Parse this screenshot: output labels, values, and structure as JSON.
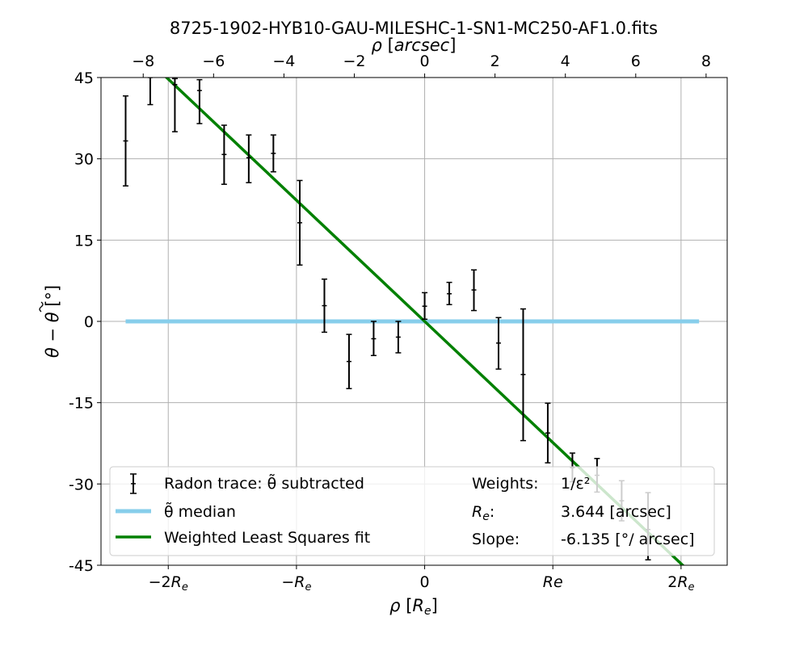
{
  "chart_data": {
    "type": "scatter",
    "title": "8725-1902-HYB10-GAU-MILESHC-1-SN1-MC250-AF1.0.fits",
    "xlabel": "ρ [R_e]",
    "xlabel_top": "ρ [arcsec]",
    "ylabel": "θ − θ̃ [°]",
    "re_arcsec": 3.644,
    "xlim_arcsec": [
      -9.2,
      8.6
    ],
    "ylim": [
      -45,
      45
    ],
    "grid": true,
    "yticks": [
      45,
      30,
      15,
      0,
      -15,
      -30,
      -45
    ],
    "ytick_labels": [
      "45",
      "30",
      "15",
      "0",
      "-15",
      "-30",
      "-45"
    ],
    "xticks_top": [
      -8,
      -6,
      -4,
      -2,
      0,
      2,
      4,
      6,
      8
    ],
    "xticks_top_labels": [
      "−8",
      "−6",
      "−4",
      "−2",
      "0",
      "2",
      "4",
      "6",
      "8"
    ],
    "xticks_bottom": [
      {
        "value_arcsec": -7.288,
        "label": "−2R",
        "sub": "e"
      },
      {
        "value_arcsec": -3.644,
        "label": "−R",
        "sub": "e"
      },
      {
        "value_arcsec": 0,
        "label": "0",
        "sub": ""
      },
      {
        "value_arcsec": 3.644,
        "label": "Re",
        "sub": ""
      },
      {
        "value_arcsec": 7.288,
        "label": "2R",
        "sub": "e"
      }
    ],
    "series": [
      {
        "name": "Radon trace: θ̃ subtracted",
        "kind": "errorbar",
        "color": "#000000",
        "points": [
          {
            "x": -8.5,
            "y": 33.3,
            "lo": 25.0,
            "hi": 41.6
          },
          {
            "x": -7.8,
            "y": 45.0,
            "lo": 40.0,
            "hi": 48.0
          },
          {
            "x": -7.1,
            "y": 43.7,
            "lo": 35.0,
            "hi": 44.8
          },
          {
            "x": -6.4,
            "y": 42.6,
            "lo": 36.5,
            "hi": 44.6
          },
          {
            "x": -5.7,
            "y": 30.8,
            "lo": 25.3,
            "hi": 36.2
          },
          {
            "x": -5.0,
            "y": 30.2,
            "lo": 25.6,
            "hi": 34.4
          },
          {
            "x": -4.3,
            "y": 31.0,
            "lo": 27.6,
            "hi": 34.4
          },
          {
            "x": -3.55,
            "y": 18.2,
            "lo": 10.4,
            "hi": 26.0
          },
          {
            "x": -2.85,
            "y": 2.9,
            "lo": -2.0,
            "hi": 7.8
          },
          {
            "x": -2.15,
            "y": -7.4,
            "lo": -12.4,
            "hi": -2.4
          },
          {
            "x": -1.45,
            "y": -3.2,
            "lo": -6.3,
            "hi": 0.0
          },
          {
            "x": -0.75,
            "y": -2.9,
            "lo": -5.8,
            "hi": 0.0
          },
          {
            "x": 0.0,
            "y": 2.8,
            "lo": 0.4,
            "hi": 5.3
          },
          {
            "x": 0.7,
            "y": 5.1,
            "lo": 3.1,
            "hi": 7.2
          },
          {
            "x": 1.4,
            "y": 5.8,
            "lo": 2.0,
            "hi": 9.5
          },
          {
            "x": 2.1,
            "y": -4.0,
            "lo": -8.8,
            "hi": 0.7
          },
          {
            "x": 2.8,
            "y": -9.8,
            "lo": -22.0,
            "hi": 2.3
          },
          {
            "x": 3.5,
            "y": -20.6,
            "lo": -26.1,
            "hi": -15.1
          },
          {
            "x": 4.2,
            "y": -27.0,
            "lo": -29.6,
            "hi": -24.3
          },
          {
            "x": 4.9,
            "y": -28.4,
            "lo": -31.5,
            "hi": -25.3
          },
          {
            "x": 5.6,
            "y": -33.1,
            "lo": -36.8,
            "hi": -29.4
          },
          {
            "x": 6.35,
            "y": -38.4,
            "lo": -44.0,
            "hi": -31.6
          }
        ]
      },
      {
        "name": "θ̃ median",
        "kind": "hline",
        "color": "#87ceeb",
        "y": 0,
        "x_range": [
          -8.5,
          7.8
        ]
      },
      {
        "name": "Weighted Least Squares fit",
        "kind": "line",
        "color": "#008000",
        "slope": -6.135,
        "intercept": 0,
        "x_range": [
          -7.5,
          7.4
        ]
      }
    ],
    "legend_placement": "lower-center",
    "annotations": [
      {
        "label": "Weights:",
        "value": "1/ε²"
      },
      {
        "label": "R",
        "label_sub": "e",
        "label_suffix": ":",
        "value": "3.644 [arcsec]"
      },
      {
        "label": "Slope:",
        "value": "-6.135 [°/ arcsec]"
      }
    ]
  }
}
